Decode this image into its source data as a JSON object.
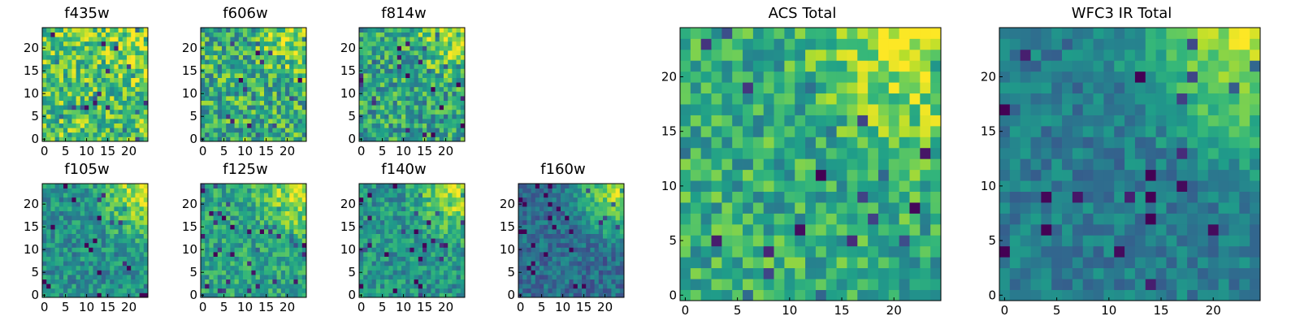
{
  "colormap": "viridis",
  "colors": {
    "frame": "#000000",
    "background": "#ffffff"
  },
  "chart_data": [
    {
      "type": "heatmap",
      "title": "f435w",
      "grid_size": 25,
      "xlim": [
        -0.5,
        24.5
      ],
      "ylim": [
        -0.5,
        24.5
      ],
      "x_ticks": [
        0,
        5,
        10,
        15,
        20
      ],
      "y_ticks": [
        0,
        5,
        10,
        15,
        20
      ],
      "value_range": [
        0,
        1
      ],
      "pattern": {
        "seed": 11,
        "base": 0.72,
        "corner": 0.18,
        "spread": 0.52
      }
    },
    {
      "type": "heatmap",
      "title": "f606w",
      "grid_size": 25,
      "xlim": [
        -0.5,
        24.5
      ],
      "ylim": [
        -0.5,
        24.5
      ],
      "x_ticks": [
        0,
        5,
        10,
        15,
        20
      ],
      "y_ticks": [
        0,
        5,
        10,
        15,
        20
      ],
      "value_range": [
        0,
        1
      ],
      "pattern": {
        "seed": 23,
        "base": 0.62,
        "corner": 0.28,
        "spread": 0.55
      }
    },
    {
      "type": "heatmap",
      "title": "f814w",
      "grid_size": 25,
      "xlim": [
        -0.5,
        24.5
      ],
      "ylim": [
        -0.5,
        24.5
      ],
      "x_ticks": [
        0,
        5,
        10,
        15,
        20
      ],
      "y_ticks": [
        0,
        5,
        10,
        15,
        20
      ],
      "value_range": [
        0,
        1
      ],
      "pattern": {
        "seed": 37,
        "base": 0.58,
        "corner": 0.38,
        "spread": 0.5
      }
    },
    {
      "type": "heatmap",
      "title": "f105w",
      "grid_size": 25,
      "xlim": [
        -0.5,
        24.5
      ],
      "ylim": [
        -0.5,
        24.5
      ],
      "x_ticks": [
        0,
        5,
        10,
        15,
        20
      ],
      "y_ticks": [
        0,
        5,
        10,
        15,
        20
      ],
      "value_range": [
        0,
        1
      ],
      "pattern": {
        "seed": 41,
        "base": 0.5,
        "corner": 0.48,
        "spread": 0.36
      }
    },
    {
      "type": "heatmap",
      "title": "f125w",
      "grid_size": 25,
      "xlim": [
        -0.5,
        24.5
      ],
      "ylim": [
        -0.5,
        24.5
      ],
      "x_ticks": [
        0,
        5,
        10,
        15,
        20
      ],
      "y_ticks": [
        0,
        5,
        10,
        15,
        20
      ],
      "value_range": [
        0,
        1
      ],
      "pattern": {
        "seed": 53,
        "base": 0.58,
        "corner": 0.38,
        "spread": 0.36
      }
    },
    {
      "type": "heatmap",
      "title": "f140w",
      "grid_size": 25,
      "xlim": [
        -0.5,
        24.5
      ],
      "ylim": [
        -0.5,
        24.5
      ],
      "x_ticks": [
        0,
        5,
        10,
        15,
        20
      ],
      "y_ticks": [
        0,
        5,
        10,
        15,
        20
      ],
      "value_range": [
        0,
        1
      ],
      "pattern": {
        "seed": 67,
        "base": 0.52,
        "corner": 0.45,
        "spread": 0.36
      }
    },
    {
      "type": "heatmap",
      "title": "f160w",
      "grid_size": 25,
      "xlim": [
        -0.5,
        24.5
      ],
      "ylim": [
        -0.5,
        24.5
      ],
      "x_ticks": [
        0,
        5,
        10,
        15,
        20
      ],
      "y_ticks": [
        0,
        5,
        10,
        15,
        20
      ],
      "value_range": [
        0,
        1
      ],
      "pattern": {
        "seed": 79,
        "base": 0.36,
        "corner": 0.62,
        "spread": 0.3
      }
    },
    {
      "type": "heatmap",
      "title": "ACS Total",
      "grid_size": 25,
      "xlim": [
        -0.5,
        24.5
      ],
      "ylim": [
        -0.5,
        24.5
      ],
      "x_ticks": [
        0,
        5,
        10,
        15,
        20
      ],
      "y_ticks": [
        0,
        5,
        10,
        15,
        20
      ],
      "value_range": [
        0,
        1
      ],
      "pattern": {
        "seed": 97,
        "base": 0.62,
        "corner": 0.36,
        "spread": 0.42
      }
    },
    {
      "type": "heatmap",
      "title": "WFC3 IR Total",
      "grid_size": 25,
      "xlim": [
        -0.5,
        24.5
      ],
      "ylim": [
        -0.5,
        24.5
      ],
      "x_ticks": [
        0,
        5,
        10,
        15,
        20
      ],
      "y_ticks": [
        0,
        5,
        10,
        15,
        20
      ],
      "value_range": [
        0,
        1
      ],
      "pattern": {
        "seed": 113,
        "base": 0.42,
        "corner": 0.56,
        "spread": 0.26
      }
    }
  ]
}
